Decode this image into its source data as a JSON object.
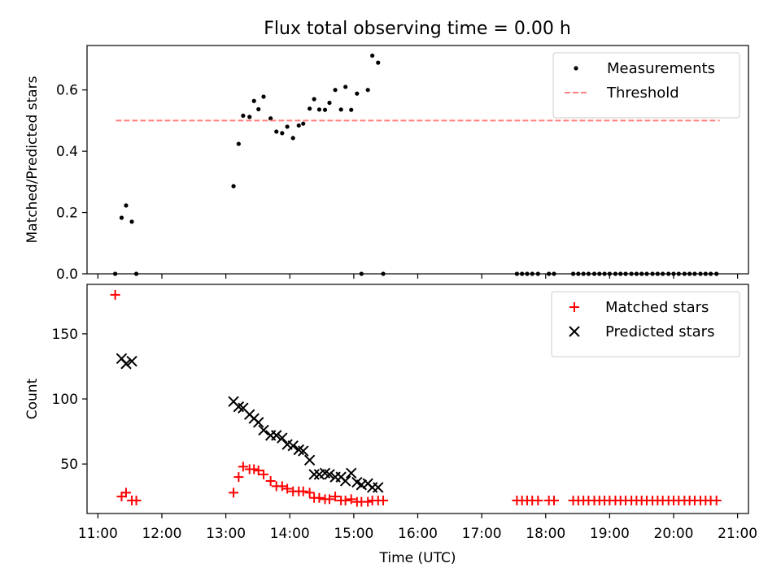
{
  "title": "Flux total observing time = 0.00 h",
  "chart_data": [
    {
      "type": "scatter",
      "ylabel": "Matched/Predicted stars",
      "xlim": [
        10.83,
        21.17
      ],
      "ylim": [
        0,
        0.745
      ],
      "yticks": [
        "0.0",
        "0.2",
        "0.4",
        "0.6"
      ],
      "ytick_values": [
        0,
        0.2,
        0.4,
        0.6
      ],
      "legend_position": "top-right",
      "series": [
        {
          "name": "Measurements",
          "style": "dot",
          "color": "#000000",
          "points": [
            [
              11.27,
              0
            ],
            [
              11.37,
              0.183
            ],
            [
              11.44,
              0.223
            ],
            [
              11.53,
              0.17
            ],
            [
              11.6,
              0
            ],
            [
              13.12,
              0.286
            ],
            [
              13.2,
              0.424
            ],
            [
              13.27,
              0.516
            ],
            [
              13.37,
              0.512
            ],
            [
              13.44,
              0.564
            ],
            [
              13.51,
              0.537
            ],
            [
              13.59,
              0.578
            ],
            [
              13.7,
              0.507
            ],
            [
              13.79,
              0.464
            ],
            [
              13.88,
              0.459
            ],
            [
              13.96,
              0.48
            ],
            [
              14.05,
              0.443
            ],
            [
              14.14,
              0.484
            ],
            [
              14.21,
              0.49
            ],
            [
              14.31,
              0.539
            ],
            [
              14.38,
              0.57
            ],
            [
              14.46,
              0.536
            ],
            [
              14.55,
              0.535
            ],
            [
              14.62,
              0.558
            ],
            [
              14.71,
              0.6
            ],
            [
              14.8,
              0.536
            ],
            [
              14.87,
              0.61
            ],
            [
              14.96,
              0.535
            ],
            [
              15.05,
              0.588
            ],
            [
              15.12,
              0
            ],
            [
              15.22,
              0.6
            ],
            [
              15.29,
              0.712
            ],
            [
              15.38,
              0.689
            ],
            [
              15.46,
              0
            ],
            [
              17.55,
              0
            ],
            [
              17.63,
              0
            ],
            [
              17.71,
              0
            ],
            [
              17.79,
              0
            ],
            [
              17.88,
              0
            ],
            [
              18.05,
              0
            ],
            [
              18.13,
              0
            ],
            [
              18.43,
              0
            ],
            [
              18.51,
              0
            ],
            [
              18.59,
              0
            ],
            [
              18.67,
              0
            ],
            [
              18.76,
              0
            ],
            [
              18.84,
              0
            ],
            [
              18.92,
              0
            ],
            [
              19.0,
              0
            ],
            [
              19.09,
              0
            ],
            [
              19.17,
              0
            ],
            [
              19.25,
              0
            ],
            [
              19.34,
              0
            ],
            [
              19.42,
              0
            ],
            [
              19.5,
              0
            ],
            [
              19.58,
              0
            ],
            [
              19.67,
              0
            ],
            [
              19.75,
              0
            ],
            [
              19.83,
              0
            ],
            [
              19.92,
              0
            ],
            [
              20.0,
              0
            ],
            [
              20.08,
              0
            ],
            [
              20.17,
              0
            ],
            [
              20.25,
              0
            ],
            [
              20.33,
              0
            ],
            [
              20.42,
              0
            ],
            [
              20.5,
              0
            ],
            [
              20.58,
              0
            ],
            [
              20.67,
              0
            ]
          ]
        },
        {
          "name": "Threshold",
          "style": "dashed-line",
          "color": "#ff7f7f",
          "points": [
            [
              11.28,
              0.5
            ],
            [
              20.72,
              0.5
            ]
          ]
        }
      ]
    },
    {
      "type": "scatter",
      "ylabel": "Count",
      "xlabel": "Time (UTC)",
      "xlim": [
        10.83,
        21.17
      ],
      "ylim": [
        12,
        188
      ],
      "yticks": [
        "50",
        "100",
        "150"
      ],
      "ytick_values": [
        50,
        100,
        150
      ],
      "xticks": [
        "11:00",
        "12:00",
        "13:00",
        "14:00",
        "15:00",
        "16:00",
        "17:00",
        "18:00",
        "19:00",
        "20:00",
        "21:00"
      ],
      "xtick_values": [
        11,
        12,
        13,
        14,
        15,
        16,
        17,
        18,
        19,
        20,
        21
      ],
      "legend_position": "top-right",
      "series": [
        {
          "name": "Matched stars",
          "style": "plus",
          "color": "#ff0000",
          "points": [
            [
              11.27,
              180
            ],
            [
              11.37,
              25
            ],
            [
              11.44,
              28
            ],
            [
              11.53,
              22
            ],
            [
              11.6,
              22
            ],
            [
              13.12,
              28
            ],
            [
              13.2,
              40
            ],
            [
              13.27,
              48
            ],
            [
              13.37,
              46
            ],
            [
              13.44,
              46
            ],
            [
              13.51,
              45
            ],
            [
              13.59,
              42
            ],
            [
              13.7,
              37
            ],
            [
              13.79,
              33
            ],
            [
              13.88,
              33
            ],
            [
              13.96,
              31
            ],
            [
              14.05,
              29
            ],
            [
              14.14,
              29
            ],
            [
              14.21,
              29
            ],
            [
              14.31,
              28
            ],
            [
              14.38,
              24
            ],
            [
              14.46,
              24
            ],
            [
              14.55,
              23
            ],
            [
              14.62,
              23
            ],
            [
              14.71,
              25
            ],
            [
              14.8,
              22
            ],
            [
              14.87,
              22
            ],
            [
              14.96,
              23
            ],
            [
              15.05,
              21
            ],
            [
              15.12,
              21
            ],
            [
              15.22,
              21
            ],
            [
              15.29,
              22
            ],
            [
              15.38,
              22
            ],
            [
              15.46,
              22
            ],
            [
              17.55,
              22
            ],
            [
              17.63,
              22
            ],
            [
              17.71,
              22
            ],
            [
              17.79,
              22
            ],
            [
              17.88,
              22
            ],
            [
              18.05,
              22
            ],
            [
              18.13,
              22
            ],
            [
              18.43,
              22
            ],
            [
              18.51,
              22
            ],
            [
              18.59,
              22
            ],
            [
              18.67,
              22
            ],
            [
              18.76,
              22
            ],
            [
              18.84,
              22
            ],
            [
              18.92,
              22
            ],
            [
              19.0,
              22
            ],
            [
              19.09,
              22
            ],
            [
              19.17,
              22
            ],
            [
              19.25,
              22
            ],
            [
              19.34,
              22
            ],
            [
              19.42,
              22
            ],
            [
              19.5,
              22
            ],
            [
              19.58,
              22
            ],
            [
              19.67,
              22
            ],
            [
              19.75,
              22
            ],
            [
              19.83,
              22
            ],
            [
              19.92,
              22
            ],
            [
              20.0,
              22
            ],
            [
              20.08,
              22
            ],
            [
              20.17,
              22
            ],
            [
              20.25,
              22
            ],
            [
              20.33,
              22
            ],
            [
              20.42,
              22
            ],
            [
              20.5,
              22
            ],
            [
              20.58,
              22
            ],
            [
              20.67,
              22
            ]
          ]
        },
        {
          "name": "Predicted stars",
          "style": "x",
          "color": "#000000",
          "points": [
            [
              11.37,
              131
            ],
            [
              11.44,
              127
            ],
            [
              11.53,
              129
            ],
            [
              13.12,
              98
            ],
            [
              13.2,
              94
            ],
            [
              13.27,
              93
            ],
            [
              13.37,
              88
            ],
            [
              13.44,
              85
            ],
            [
              13.51,
              82
            ],
            [
              13.59,
              76
            ],
            [
              13.7,
              72
            ],
            [
              13.79,
              72
            ],
            [
              13.88,
              70
            ],
            [
              13.96,
              65
            ],
            [
              14.05,
              64
            ],
            [
              14.14,
              61
            ],
            [
              14.21,
              60
            ],
            [
              14.31,
              53
            ],
            [
              14.38,
              42
            ],
            [
              14.46,
              42
            ],
            [
              14.55,
              43
            ],
            [
              14.62,
              42
            ],
            [
              14.71,
              40
            ],
            [
              14.8,
              40
            ],
            [
              14.87,
              37
            ],
            [
              14.96,
              43
            ],
            [
              15.05,
              36
            ],
            [
              15.12,
              34
            ],
            [
              15.22,
              35
            ],
            [
              15.29,
              32
            ],
            [
              15.38,
              32
            ]
          ]
        }
      ]
    }
  ]
}
